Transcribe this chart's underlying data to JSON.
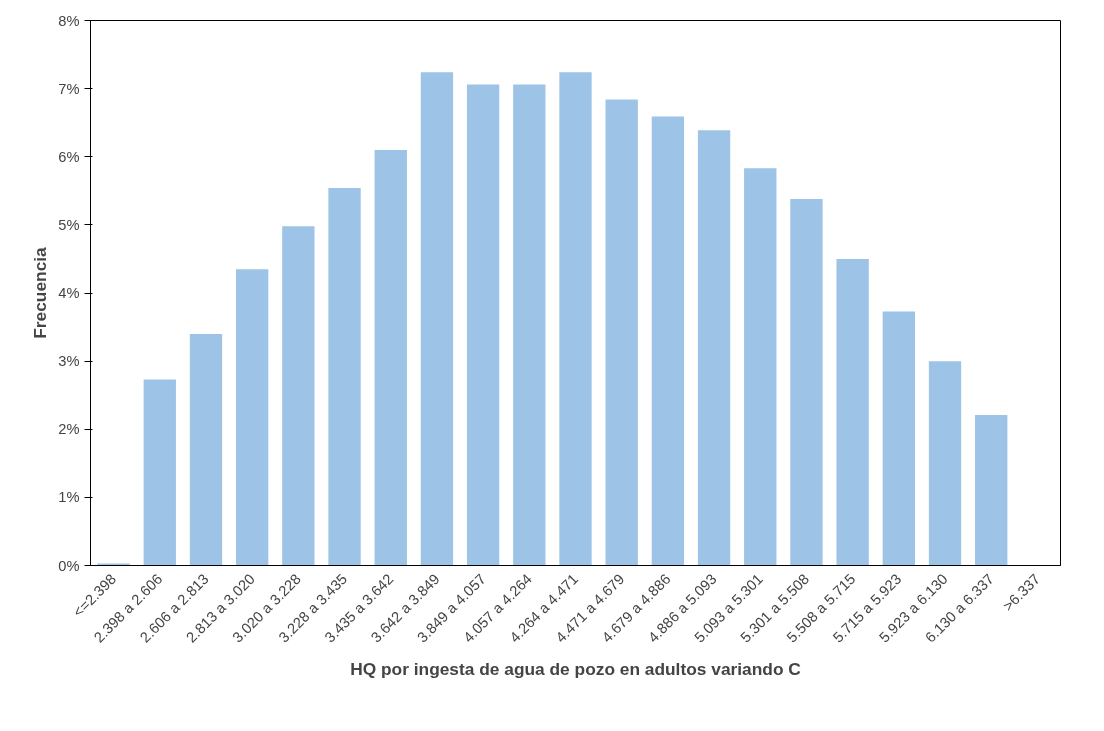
{
  "chart_data": {
    "type": "bar",
    "xlabel": "HQ por ingesta de agua de pozo en adultos variando C",
    "ylabel": "Frecuencia",
    "categories": [
      "<=2.398",
      "2.398 a 2.606",
      "2.606 a 2.813",
      "2.813 a 3.020",
      "3.020 a 3.228",
      "3.228 a 3.435",
      "3.435 a 3.642",
      "3.642 a 3.849",
      "3.849 a 4.057",
      "4.057 a 4.264",
      "4.264 a 4.471",
      "4.471 a 4.679",
      "4.679 a 4.886",
      "4.886 a 5.093",
      "5.093 a 5.301",
      "5.301 a 5.508",
      "5.508 a 5.715",
      "5.715 a 5.923",
      "5.923 a 6.130",
      "6.130 a 6.337",
      ">6.337"
    ],
    "values": [
      0.03,
      2.73,
      3.4,
      4.35,
      4.98,
      5.54,
      6.1,
      7.24,
      7.06,
      7.06,
      7.24,
      6.84,
      6.59,
      6.39,
      5.83,
      5.38,
      4.5,
      3.73,
      3.0,
      2.21,
      0
    ],
    "color": "#9dc3e6",
    "ylim": [
      0,
      8
    ],
    "yticks": [
      {
        "value": 0,
        "label": "0%"
      },
      {
        "value": 1,
        "label": "1%"
      },
      {
        "value": 2,
        "label": "2%"
      },
      {
        "value": 3,
        "label": "3%"
      },
      {
        "value": 4,
        "label": "4%"
      },
      {
        "value": 5,
        "label": "5%"
      },
      {
        "value": 6,
        "label": "6%"
      },
      {
        "value": 7,
        "label": "7%"
      },
      {
        "value": 8,
        "label": "8%"
      }
    ],
    "grid": false
  }
}
